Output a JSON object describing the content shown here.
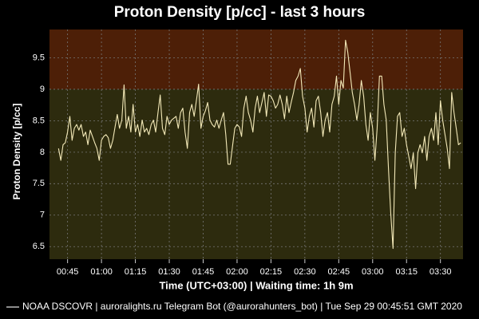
{
  "chart_data": {
    "type": "line",
    "title": "Proton Density [p/cc] - last 3 hours",
    "y_label": "Proton Density [p/cc]",
    "x_label": "Time (UTC+03:00) | Waiting time: 1h 9m",
    "footer": "NOAA DSCOVR | auroralights.ru Telegram Bot (@aurorahunters_bot) | Tue Sep 29 00:45:51 GMT 2020",
    "color": "#f3e9b8",
    "alert_level": 9.0,
    "zone_colors": {
      "below": "#2d2b0e",
      "above": "#4d1f07"
    },
    "grid": true,
    "ylim": [
      6.3,
      9.95
    ],
    "yticks": [
      6.5,
      7.0,
      7.5,
      8.0,
      8.5,
      9.0,
      9.5
    ],
    "xlim": [
      "00:37",
      "03:40"
    ],
    "xticks": [
      "00:45",
      "01:00",
      "01:15",
      "01:30",
      "01:45",
      "02:00",
      "02:15",
      "02:30",
      "02:45",
      "03:00",
      "03:15",
      "03:30"
    ],
    "x": [
      "00:41",
      "00:42",
      "00:43",
      "00:44",
      "00:45",
      "00:46",
      "00:47",
      "00:48",
      "00:49",
      "00:50",
      "00:51",
      "00:52",
      "00:53",
      "00:54",
      "00:55",
      "00:56",
      "00:57",
      "00:58",
      "00:59",
      "01:00",
      "01:01",
      "01:02",
      "01:03",
      "01:04",
      "01:05",
      "01:06",
      "01:07",
      "01:08",
      "01:09",
      "01:10",
      "01:11",
      "01:12",
      "01:13",
      "01:14",
      "01:15",
      "01:16",
      "01:17",
      "01:18",
      "01:19",
      "01:20",
      "01:21",
      "01:22",
      "01:23",
      "01:24",
      "01:25",
      "01:26",
      "01:27",
      "01:28",
      "01:29",
      "01:30",
      "01:31",
      "01:32",
      "01:33",
      "01:34",
      "01:35",
      "01:36",
      "01:37",
      "01:38",
      "01:39",
      "01:40",
      "01:41",
      "01:42",
      "01:43",
      "01:44",
      "01:45",
      "01:46",
      "01:47",
      "01:48",
      "01:49",
      "01:50",
      "01:51",
      "01:52",
      "01:53",
      "01:54",
      "01:55",
      "01:56",
      "01:57",
      "01:58",
      "01:59",
      "02:00",
      "02:01",
      "02:02",
      "02:03",
      "02:04",
      "02:05",
      "02:06",
      "02:07",
      "02:08",
      "02:09",
      "02:10",
      "02:11",
      "02:12",
      "02:13",
      "02:14",
      "02:15",
      "02:16",
      "02:17",
      "02:18",
      "02:19",
      "02:20",
      "02:21",
      "02:22",
      "02:23",
      "02:24",
      "02:25",
      "02:26",
      "02:27",
      "02:28",
      "02:29",
      "02:30",
      "02:31",
      "02:32",
      "02:33",
      "02:34",
      "02:35",
      "02:36",
      "02:37",
      "02:38",
      "02:39",
      "02:40",
      "02:41",
      "02:42",
      "02:43",
      "02:44",
      "02:45",
      "02:46",
      "02:47",
      "02:48",
      "02:49",
      "02:50",
      "02:51",
      "02:52",
      "02:53",
      "02:54",
      "02:55",
      "02:56",
      "02:57",
      "02:58",
      "02:59",
      "03:00",
      "03:01",
      "03:02",
      "03:03",
      "03:04",
      "03:05",
      "03:06",
      "03:07",
      "03:08",
      "03:09",
      "03:10",
      "03:11",
      "03:12",
      "03:13",
      "03:14",
      "03:15",
      "03:16",
      "03:17",
      "03:18",
      "03:19",
      "03:20",
      "03:21",
      "03:22",
      "03:23",
      "03:24",
      "03:25",
      "03:26",
      "03:27",
      "03:28",
      "03:29",
      "03:30",
      "03:31",
      "03:32",
      "03:33",
      "03:34",
      "03:35",
      "03:36",
      "03:37",
      "03:38",
      "03:39"
    ],
    "values": [
      8.06,
      7.87,
      8.12,
      8.15,
      8.32,
      8.57,
      8.19,
      8.38,
      8.44,
      8.35,
      8.44,
      8.25,
      8.32,
      8.12,
      8.35,
      8.25,
      8.15,
      8.06,
      7.87,
      8.19,
      8.25,
      8.28,
      8.23,
      8.06,
      8.19,
      8.4,
      8.6,
      8.38,
      8.51,
      9.07,
      8.38,
      8.57,
      8.32,
      8.76,
      8.32,
      8.44,
      8.25,
      8.51,
      8.32,
      8.38,
      8.28,
      8.44,
      8.51,
      8.32,
      8.63,
      8.91,
      8.38,
      8.28,
      8.57,
      8.44,
      8.51,
      8.54,
      8.57,
      8.38,
      8.63,
      8.7,
      8.32,
      8.06,
      8.63,
      8.76,
      8.57,
      8.82,
      9.08,
      8.38,
      8.57,
      8.66,
      8.79,
      8.51,
      8.44,
      8.4,
      8.51,
      8.38,
      8.51,
      8.63,
      8.28,
      7.81,
      7.81,
      8.1,
      8.38,
      8.44,
      8.4,
      8.25,
      8.7,
      8.89,
      8.63,
      8.51,
      8.32,
      8.7,
      8.89,
      8.63,
      8.79,
      8.95,
      8.57,
      8.91,
      8.89,
      8.82,
      8.7,
      8.76,
      8.91,
      8.76,
      8.53,
      8.89,
      8.63,
      8.8,
      8.95,
      9.14,
      9.21,
      9.33,
      8.89,
      8.7,
      8.32,
      8.57,
      8.7,
      8.4,
      8.82,
      8.89,
      8.63,
      8.25,
      8.51,
      8.63,
      8.32,
      8.76,
      8.89,
      9.21,
      8.76,
      9.14,
      9.02,
      9.78,
      9.59,
      9.27,
      8.95,
      8.76,
      8.51,
      8.76,
      9.14,
      8.89,
      8.44,
      8.19,
      8.63,
      8.38,
      7.87,
      8.38,
      9.21,
      9.21,
      8.76,
      8.51,
      7.74,
      7.04,
      6.47,
      7.99,
      8.57,
      8.63,
      8.25,
      8.38,
      8.12,
      7.93,
      7.74,
      7.99,
      7.42,
      7.99,
      8.12,
      7.99,
      8.25,
      7.87,
      8.25,
      8.38,
      8.19,
      8.63,
      8.12,
      8.82,
      8.51,
      8.28,
      8.06,
      7.74,
      8.95,
      8.63,
      8.38,
      8.12,
      8.15
    ]
  }
}
